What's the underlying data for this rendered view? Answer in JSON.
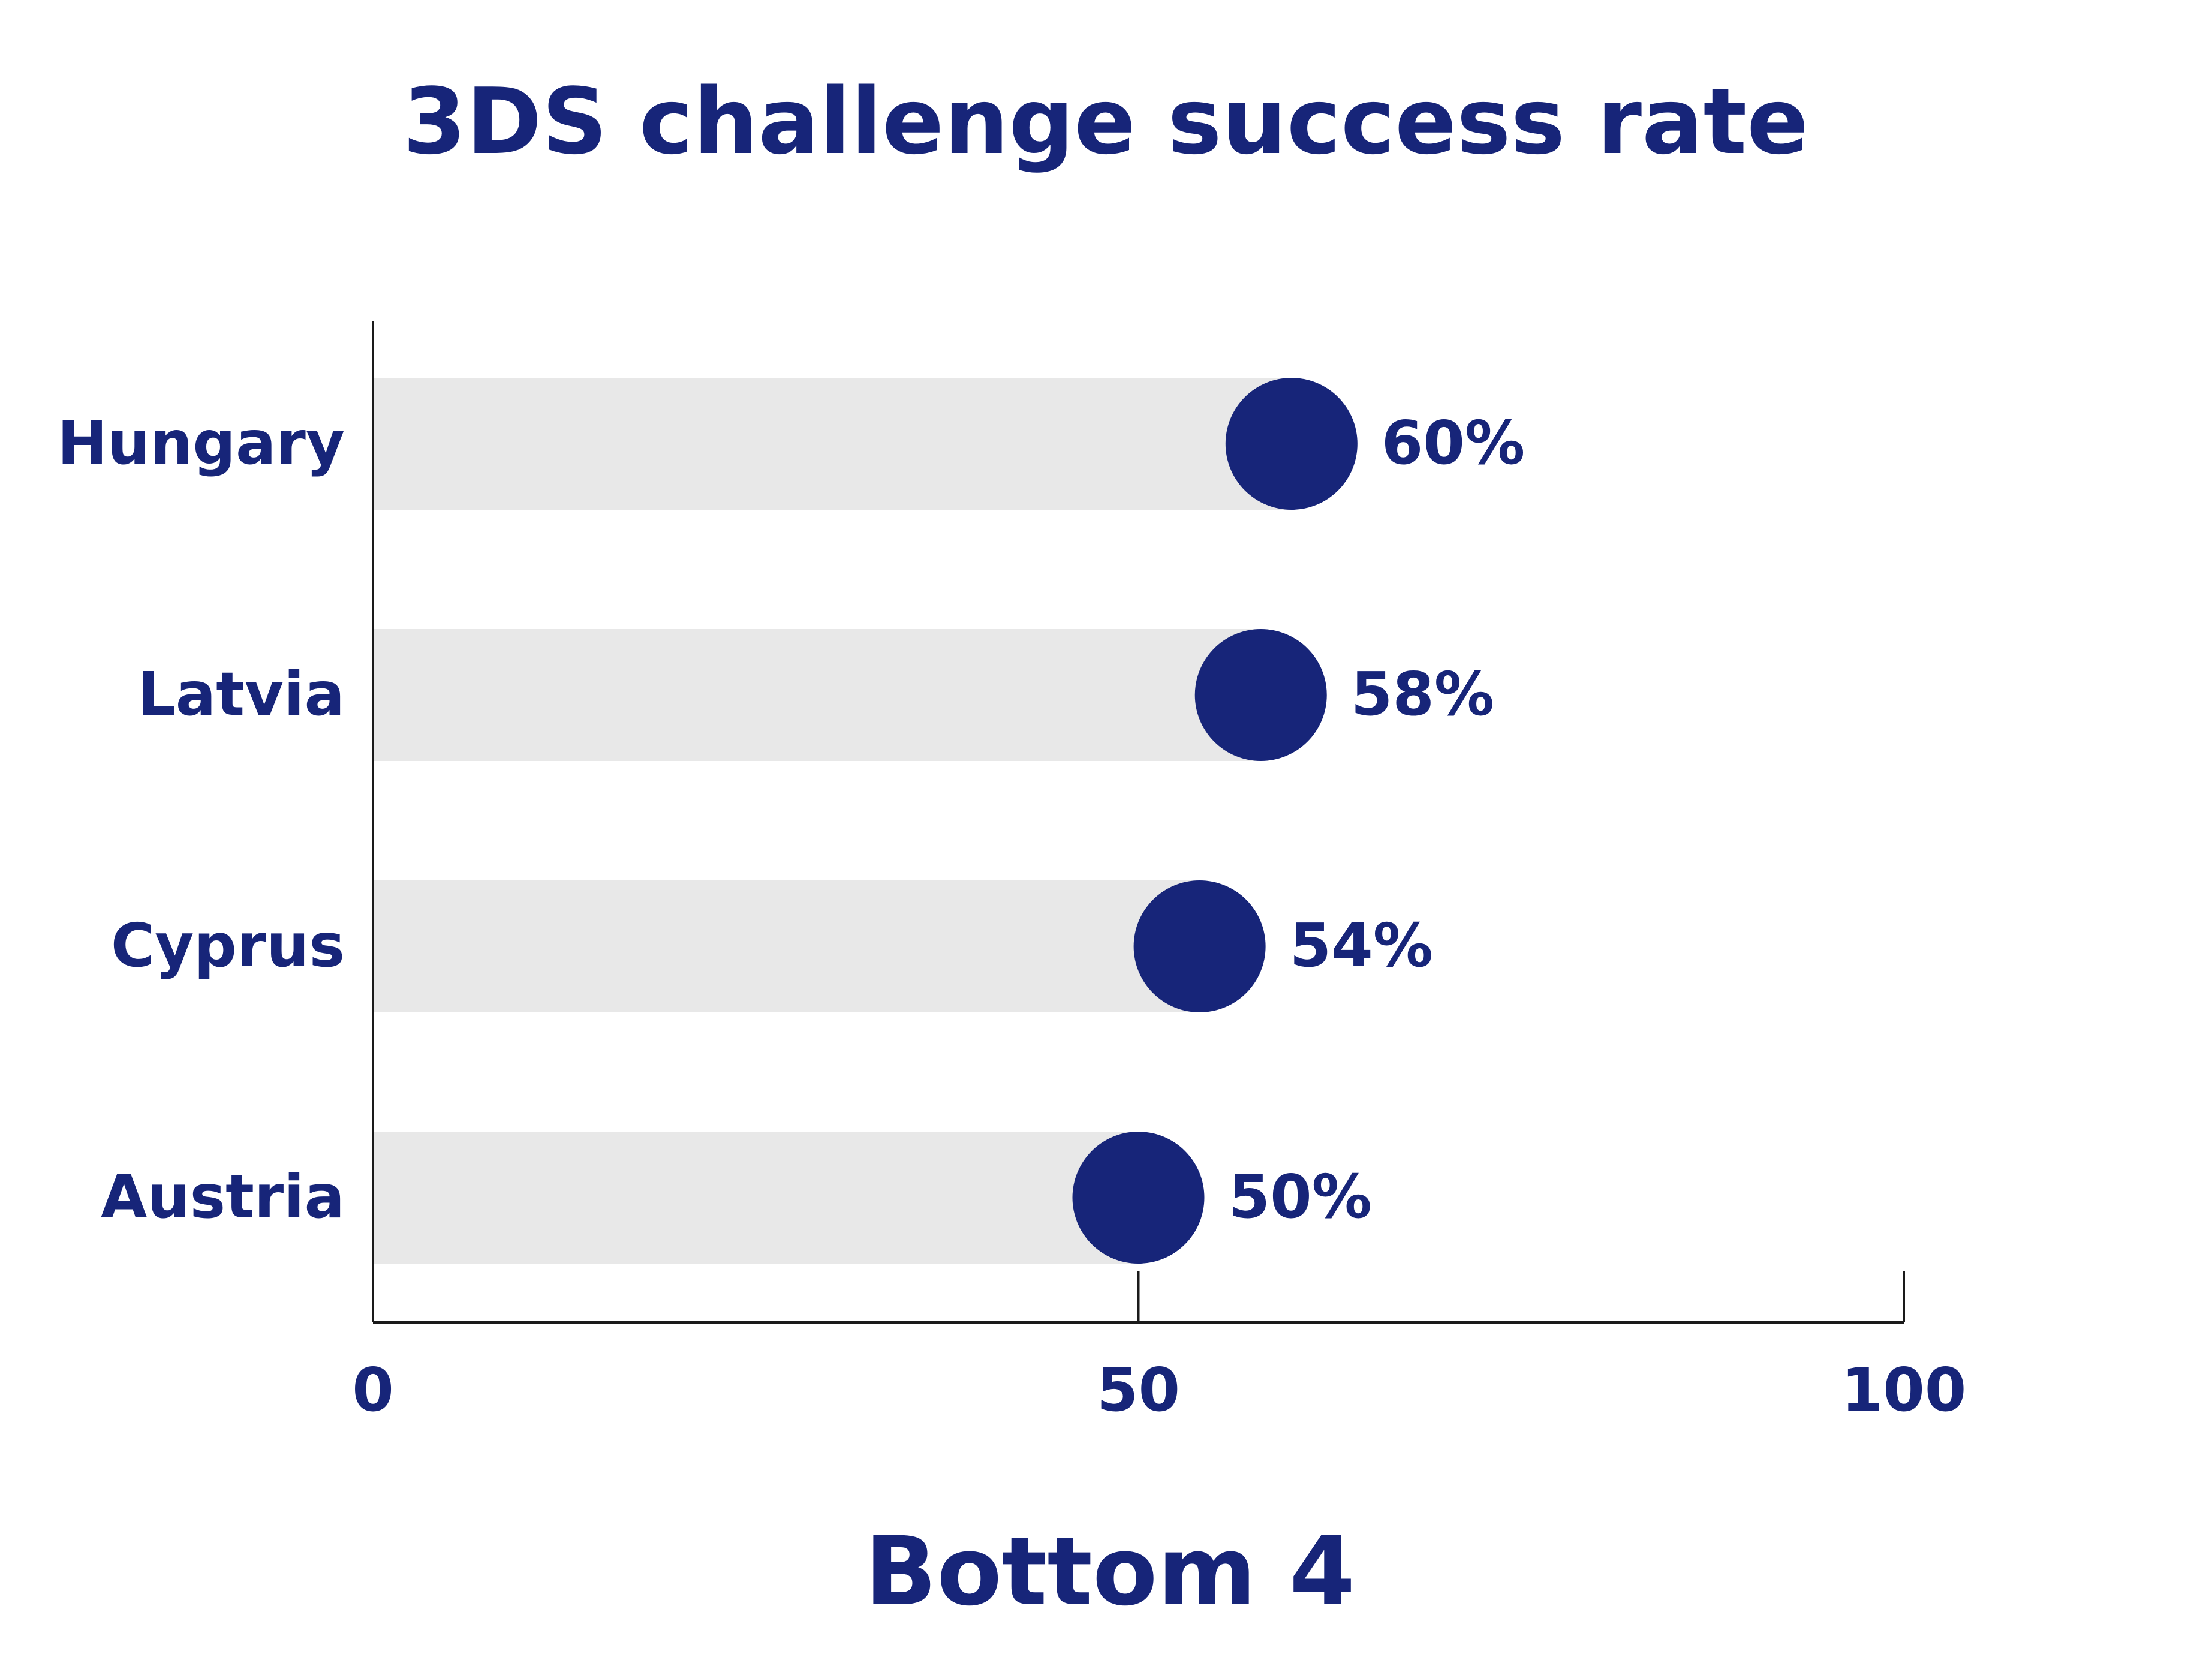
{
  "colors": {
    "accent": "#172579",
    "track": "#e8e8e8",
    "axis": "#1a1a1a",
    "background": "#ffffff"
  },
  "chart_data": {
    "type": "bar",
    "style": "lollipop",
    "orientation": "horizontal",
    "title": "3DS challenge success rate",
    "caption": "Bottom 4",
    "categories": [
      "Hungary",
      "Latvia",
      "Cyprus",
      "Austria"
    ],
    "values": [
      60,
      58,
      54,
      50
    ],
    "value_labels": [
      "60%",
      "58%",
      "54%",
      "50%"
    ],
    "xlim": [
      0,
      100
    ],
    "xticks": [
      0,
      50,
      100
    ],
    "xtick_labels": [
      "0",
      "50",
      "100"
    ],
    "grid": false,
    "legend": "none"
  }
}
